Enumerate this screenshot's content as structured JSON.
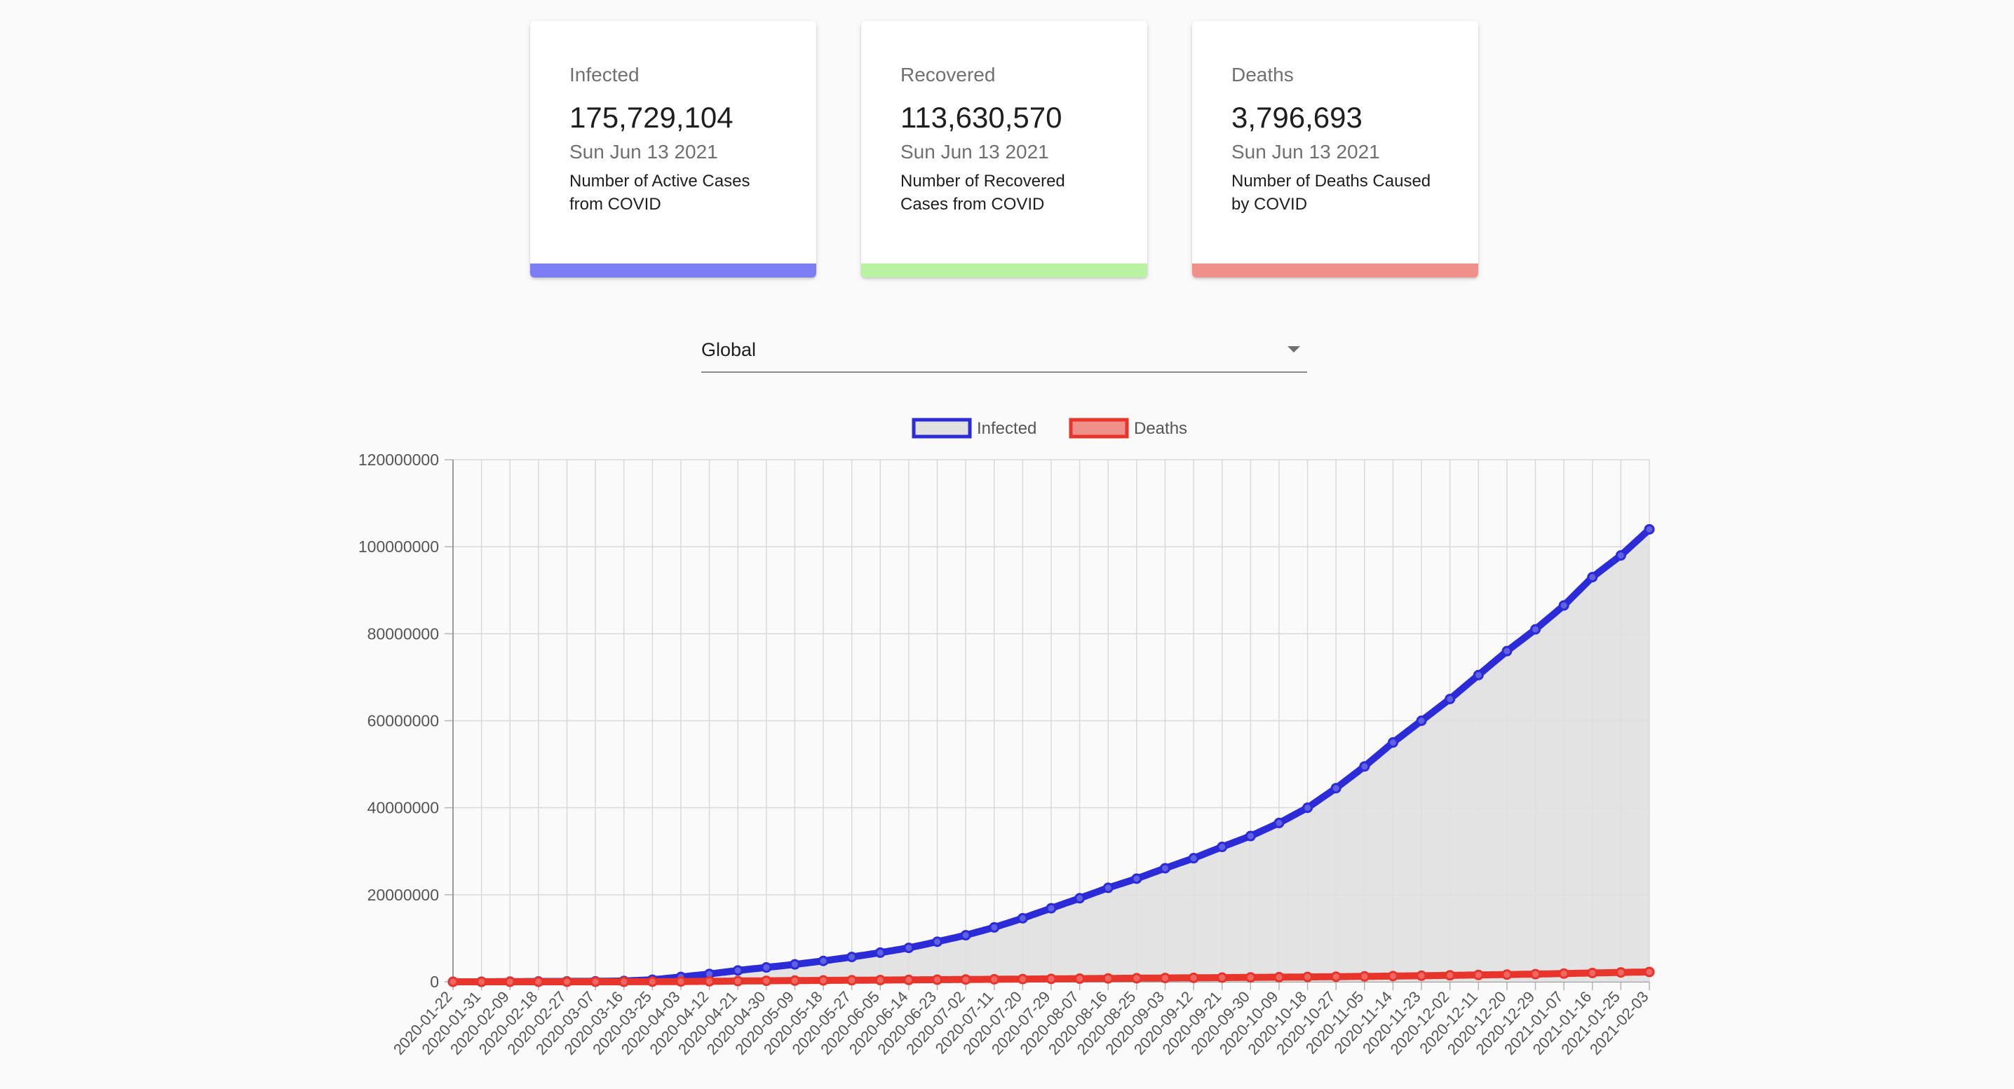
{
  "cards": [
    {
      "id": "infected",
      "title": "Infected",
      "value": "175,729,104",
      "date": "Sun Jun 13 2021",
      "description": "Number of Active Cases from COVID",
      "color": "#7b7ff3"
    },
    {
      "id": "recovered",
      "title": "Recovered",
      "value": "113,630,570",
      "date": "Sun Jun 13 2021",
      "description": "Number of Recovered Cases from COVID",
      "color": "#b7f3a0"
    },
    {
      "id": "deaths",
      "title": "Deaths",
      "value": "3,796,693",
      "date": "Sun Jun 13 2021",
      "description": "Number of Deaths Caused by COVID",
      "color": "#ef918a"
    }
  ],
  "region_select": {
    "selected": "Global"
  },
  "chart_data": {
    "type": "line",
    "title": "",
    "xlabel": "",
    "ylabel": "",
    "ylim": [
      0,
      120000000
    ],
    "y_ticks": [
      0,
      20000000,
      40000000,
      60000000,
      80000000,
      100000000,
      120000000
    ],
    "x_start": "2020-01-22",
    "x_end": "2021-02-03",
    "x_tick_labels": [
      "2020-01-22",
      "2020-01-31",
      "2020-02-09",
      "2020-02-18",
      "2020-02-27",
      "2020-03-07",
      "2020-03-16",
      "2020-03-25",
      "2020-04-03",
      "2020-04-12",
      "2020-04-21",
      "2020-04-30",
      "2020-05-09",
      "2020-05-18",
      "2020-05-27",
      "2020-06-05",
      "2020-06-14",
      "2020-06-23",
      "2020-07-02",
      "2020-07-11",
      "2020-07-20",
      "2020-07-29",
      "2020-08-07",
      "2020-08-16",
      "2020-08-25",
      "2020-09-03",
      "2020-09-12",
      "2020-09-21",
      "2020-09-30",
      "2020-10-09",
      "2020-10-18",
      "2020-10-27",
      "2020-11-05",
      "2020-11-14",
      "2020-11-23",
      "2020-12-02",
      "2020-12-11",
      "2020-12-20",
      "2020-12-29",
      "2021-01-07",
      "2021-01-16",
      "2021-01-25",
      "2021-02-03"
    ],
    "legend_position": "top",
    "grid": true,
    "series": [
      {
        "name": "Infected",
        "border_color": "#2b2bd8",
        "fill_color": "#e0e0e0",
        "filled": true,
        "x": [
          "2020-01-22",
          "2020-01-31",
          "2020-02-09",
          "2020-02-18",
          "2020-02-27",
          "2020-03-07",
          "2020-03-16",
          "2020-03-25",
          "2020-04-03",
          "2020-04-12",
          "2020-04-21",
          "2020-04-30",
          "2020-05-09",
          "2020-05-18",
          "2020-05-27",
          "2020-06-05",
          "2020-06-14",
          "2020-06-23",
          "2020-07-02",
          "2020-07-11",
          "2020-07-20",
          "2020-07-29",
          "2020-08-07",
          "2020-08-16",
          "2020-08-25",
          "2020-09-03",
          "2020-09-12",
          "2020-09-21",
          "2020-09-30",
          "2020-10-09",
          "2020-10-18",
          "2020-10-27",
          "2020-11-05",
          "2020-11-14",
          "2020-11-23",
          "2020-12-02",
          "2020-12-11",
          "2020-12-20",
          "2020-12-29",
          "2021-01-07",
          "2021-01-16",
          "2021-01-25",
          "2021-02-03"
        ],
        "values": [
          0,
          10000,
          40000,
          75000,
          85000,
          110000,
          180000,
          470000,
          1100000,
          1800000,
          2600000,
          3300000,
          4000000,
          4800000,
          5700000,
          6700000,
          7800000,
          9200000,
          10700000,
          12500000,
          14600000,
          16900000,
          19200000,
          21600000,
          23700000,
          26100000,
          28400000,
          31000000,
          33500000,
          36500000,
          40000000,
          44500000,
          49500000,
          55000000,
          60000000,
          65000000,
          70500000,
          76000000,
          81000000,
          86500000,
          93000000,
          98000000,
          104000000
        ]
      },
      {
        "name": "Deaths",
        "border_color": "#e8352b",
        "fill_color": "#f0908a",
        "filled": false,
        "x": [
          "2020-01-22",
          "2020-01-31",
          "2020-02-09",
          "2020-02-18",
          "2020-02-27",
          "2020-03-07",
          "2020-03-16",
          "2020-03-25",
          "2020-04-03",
          "2020-04-12",
          "2020-04-21",
          "2020-04-30",
          "2020-05-09",
          "2020-05-18",
          "2020-05-27",
          "2020-06-05",
          "2020-06-14",
          "2020-06-23",
          "2020-07-02",
          "2020-07-11",
          "2020-07-20",
          "2020-07-29",
          "2020-08-07",
          "2020-08-16",
          "2020-08-25",
          "2020-09-03",
          "2020-09-12",
          "2020-09-21",
          "2020-09-30",
          "2020-10-09",
          "2020-10-18",
          "2020-10-27",
          "2020-11-05",
          "2020-11-14",
          "2020-11-23",
          "2020-12-02",
          "2020-12-11",
          "2020-12-20",
          "2020-12-29",
          "2021-01-07",
          "2021-01-16",
          "2021-01-25",
          "2021-02-03"
        ],
        "values": [
          0,
          200,
          900,
          2000,
          2800,
          3600,
          7000,
          21000,
          60000,
          110000,
          170000,
          230000,
          280000,
          320000,
          355000,
          395000,
          440000,
          485000,
          530000,
          575000,
          625000,
          670000,
          720000,
          770000,
          820000,
          870000,
          915000,
          960000,
          1010000,
          1060000,
          1110000,
          1170000,
          1240000,
          1310000,
          1390000,
          1480000,
          1570000,
          1660000,
          1760000,
          1890000,
          2020000,
          2150000,
          2260000
        ]
      }
    ]
  }
}
